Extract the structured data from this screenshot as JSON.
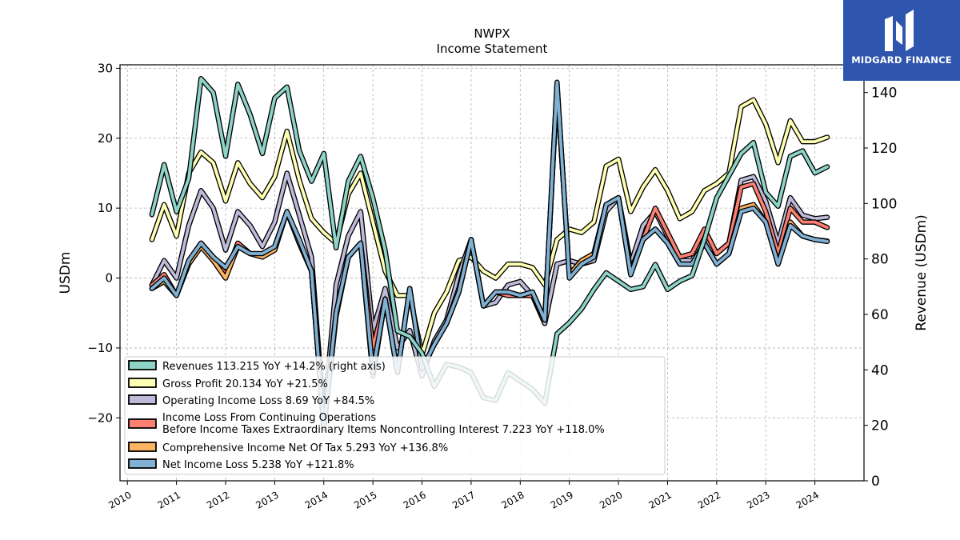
{
  "header": {
    "ticker": "NWPX",
    "subtitle": "Income Statement"
  },
  "brand": {
    "name": "MIDGARD FINANCE",
    "bg_color": "#2f56ae",
    "icon": "midgard-logo-icon"
  },
  "chart_data": {
    "type": "line",
    "title": "NWPX",
    "subtitle": "Income Statement",
    "ylabel_left": "USDm",
    "ylabel_right": "Revenue (USDm)",
    "ylim_left": [
      -29,
      30.5
    ],
    "ylim_right": [
      0,
      150
    ],
    "yticks_left": [
      -20,
      -10,
      0,
      10,
      20,
      30
    ],
    "yticks_right": [
      0,
      20,
      40,
      60,
      80,
      100,
      120,
      140
    ],
    "xlim": [
      2009.85,
      2025.0
    ],
    "xticks": [
      2010,
      2011,
      2012,
      2013,
      2014,
      2015,
      2016,
      2017,
      2018,
      2019,
      2020,
      2021,
      2022,
      2023,
      2024
    ],
    "grid": true,
    "legend_position": "lower-left",
    "legend": [
      {
        "key": "revenues",
        "label": "Revenues  113.215 YoY +14.2% (right axis)"
      },
      {
        "key": "gross",
        "label": "Gross Profit  20.134 YoY +21.5%"
      },
      {
        "key": "opinc",
        "label": "Operating Income Loss  8.69 YoY +84.5%"
      },
      {
        "key": "pretax",
        "label_line1": "Income Loss From Continuing Operations",
        "label_line2": "Before Income Taxes Extraordinary Items Noncontrolling Interest  7.223 YoY +118.0%"
      },
      {
        "key": "comp",
        "label": "Comprehensive Income Net Of Tax  5.293 YoY +136.8%"
      },
      {
        "key": "net",
        "label": "Net Income Loss  5.238 YoY +121.8%"
      }
    ],
    "series": [
      {
        "key": "gross",
        "color": "#ffffb3",
        "axis": "left",
        "x": [
          2010.5,
          2010.75,
          2011.0,
          2011.25,
          2011.5,
          2011.75,
          2012.0,
          2012.25,
          2012.5,
          2012.75,
          2013.0,
          2013.25,
          2013.5,
          2013.75,
          2014.0,
          2014.25,
          2014.5,
          2014.75,
          2015.0,
          2015.25,
          2015.5,
          2015.75,
          2016.0,
          2016.25,
          2016.5,
          2016.75,
          2017.0,
          2017.25,
          2017.5,
          2017.75,
          2018.0,
          2018.25,
          2018.5,
          2018.75,
          2019.0,
          2019.25,
          2019.5,
          2019.75,
          2020.0,
          2020.25,
          2020.5,
          2020.75,
          2021.0,
          2021.25,
          2021.5,
          2021.75,
          2022.0,
          2022.25,
          2022.5,
          2022.75,
          2023.0,
          2023.25,
          2023.5,
          2023.75,
          2024.0,
          2024.25
        ],
        "values": [
          5.5,
          10.5,
          6.0,
          15.0,
          18.0,
          16.5,
          11.0,
          16.5,
          13.5,
          11.5,
          14.5,
          21.0,
          14.0,
          8.5,
          6.5,
          5.0,
          12.0,
          15.0,
          8.0,
          1.0,
          -2.5,
          -2.5,
          -11.0,
          -5.0,
          -2.0,
          2.5,
          3.0,
          1.0,
          0.0,
          2.0,
          2.0,
          1.5,
          -1.0,
          5.5,
          7.0,
          6.5,
          8.0,
          16.0,
          17.0,
          9.5,
          13.0,
          15.5,
          12.5,
          8.5,
          9.5,
          12.5,
          13.5,
          15.0,
          24.5,
          25.5,
          22.0,
          16.5,
          22.5,
          19.5,
          19.5,
          20.134
        ]
      },
      {
        "key": "opinc",
        "color": "#bebada",
        "axis": "left",
        "x": [
          2010.5,
          2010.75,
          2011.0,
          2011.25,
          2011.5,
          2011.75,
          2012.0,
          2012.25,
          2012.5,
          2012.75,
          2013.0,
          2013.25,
          2013.5,
          2013.75,
          2014.0,
          2014.25,
          2014.5,
          2014.75,
          2015.0,
          2015.25,
          2015.5,
          2015.75,
          2016.0,
          2016.25,
          2016.5,
          2016.75,
          2017.0,
          2017.25,
          2017.5,
          2017.75,
          2018.0,
          2018.25,
          2018.5,
          2018.75,
          2019.0,
          2019.25,
          2019.5,
          2019.75,
          2020.0,
          2020.25,
          2020.5,
          2020.75,
          2021.0,
          2021.25,
          2021.5,
          2021.75,
          2022.0,
          2022.25,
          2022.5,
          2022.75,
          2023.0,
          2023.25,
          2023.5,
          2023.75,
          2024.0,
          2024.25
        ],
        "values": [
          -1.0,
          2.5,
          0.0,
          7.5,
          12.5,
          10.0,
          4.0,
          9.5,
          7.5,
          4.5,
          8.0,
          15.0,
          9.0,
          3.0,
          -20.0,
          -1.0,
          6.0,
          9.5,
          -7.5,
          -1.5,
          -10.0,
          -7.5,
          -14.0,
          -9.0,
          -6.0,
          0.5,
          5.5,
          -4.0,
          -3.5,
          -1.0,
          -0.5,
          -2.5,
          -6.5,
          2.0,
          2.5,
          2.0,
          2.5,
          9.5,
          11.5,
          2.0,
          7.5,
          9.5,
          6.0,
          2.5,
          2.5,
          5.5,
          3.5,
          5.0,
          14.0,
          14.5,
          11.0,
          5.0,
          11.5,
          9.0,
          8.5,
          8.69
        ]
      },
      {
        "key": "pretax",
        "color": "#fb8072",
        "axis": "left",
        "x": [
          2010.5,
          2010.75,
          2011.0,
          2011.25,
          2011.5,
          2011.75,
          2012.0,
          2012.25,
          2012.5,
          2012.75,
          2013.0,
          2013.25,
          2013.5,
          2013.75,
          2014.0,
          2014.25,
          2014.5,
          2014.75,
          2015.0,
          2015.25,
          2015.5,
          2015.75,
          2016.0,
          2016.25,
          2016.5,
          2016.75,
          2017.0,
          2017.25,
          2017.5,
          2017.75,
          2018.0,
          2018.25,
          2018.5,
          2018.75,
          2019.0,
          2019.25,
          2019.5,
          2019.75,
          2020.0,
          2020.25,
          2020.5,
          2020.75,
          2021.0,
          2021.25,
          2021.5,
          2021.75,
          2022.0,
          2022.25,
          2022.5,
          2022.75,
          2023.0,
          2023.25,
          2023.5,
          2023.75,
          2024.0,
          2024.25
        ],
        "values": [
          -1.0,
          0.5,
          -2.5,
          2.5,
          5.0,
          3.0,
          0.5,
          5.0,
          3.5,
          3.0,
          4.5,
          9.5,
          5.0,
          1.0,
          -21.0,
          -5.0,
          3.0,
          5.0,
          -10.0,
          -3.0,
          -13.5,
          -1.5,
          -13.0,
          -9.5,
          -6.5,
          -2.0,
          5.5,
          -4.0,
          -2.0,
          -2.5,
          -2.5,
          -2.5,
          -6.0,
          27.5,
          0.5,
          2.5,
          3.5,
          10.5,
          11.5,
          1.0,
          5.5,
          10.0,
          6.5,
          3.0,
          3.5,
          7.0,
          3.5,
          5.0,
          13.0,
          13.5,
          9.5,
          3.5,
          10.0,
          8.0,
          8.0,
          7.223
        ]
      },
      {
        "key": "comp",
        "color": "#fdb462",
        "axis": "left",
        "x": [
          2010.5,
          2010.75,
          2011.0,
          2011.25,
          2011.5,
          2011.75,
          2012.0,
          2012.25,
          2012.5,
          2012.75,
          2013.0,
          2013.25,
          2013.5,
          2013.75,
          2014.0,
          2014.25,
          2014.5,
          2014.75,
          2015.0,
          2015.25,
          2015.5,
          2015.75,
          2016.0,
          2016.25,
          2016.5,
          2016.75,
          2017.0,
          2017.25,
          2017.5,
          2017.75,
          2018.0,
          2018.25,
          2018.5,
          2018.75,
          2019.0,
          2019.25,
          2019.5,
          2019.75,
          2020.0,
          2020.25,
          2020.5,
          2020.75,
          2021.0,
          2021.25,
          2021.5,
          2021.75,
          2022.0,
          2022.25,
          2022.5,
          2022.75,
          2023.0,
          2023.25,
          2023.5,
          2023.75,
          2024.0,
          2024.25
        ],
        "values": [
          -1.5,
          -0.5,
          -2.5,
          2.0,
          4.5,
          2.5,
          0.0,
          4.5,
          3.5,
          3.0,
          4.0,
          9.5,
          5.0,
          1.0,
          -21.5,
          -5.5,
          3.0,
          5.0,
          -14.0,
          -3.0,
          -13.5,
          -1.5,
          -13.0,
          -9.5,
          -6.5,
          -1.5,
          5.5,
          -4.0,
          -2.0,
          -2.0,
          -2.5,
          -2.0,
          -6.0,
          27.5,
          0.5,
          2.5,
          3.5,
          10.5,
          11.5,
          0.5,
          5.5,
          7.0,
          5.0,
          2.0,
          2.0,
          5.0,
          2.0,
          3.5,
          10.0,
          10.5,
          8.0,
          2.0,
          8.0,
          6.0,
          5.5,
          5.293
        ]
      },
      {
        "key": "net",
        "color": "#80b1d3",
        "axis": "left",
        "x": [
          2010.5,
          2010.75,
          2011.0,
          2011.25,
          2011.5,
          2011.75,
          2012.0,
          2012.25,
          2012.5,
          2012.75,
          2013.0,
          2013.25,
          2013.5,
          2013.75,
          2014.0,
          2014.25,
          2014.5,
          2014.75,
          2015.0,
          2015.25,
          2015.5,
          2015.75,
          2016.0,
          2016.25,
          2016.5,
          2016.75,
          2017.0,
          2017.25,
          2017.5,
          2017.75,
          2018.0,
          2018.25,
          2018.5,
          2018.75,
          2019.0,
          2019.25,
          2019.5,
          2019.75,
          2020.0,
          2020.25,
          2020.5,
          2020.75,
          2021.0,
          2021.25,
          2021.5,
          2021.75,
          2022.0,
          2022.25,
          2022.5,
          2022.75,
          2023.0,
          2023.25,
          2023.5,
          2023.75,
          2024.0,
          2024.25
        ],
        "values": [
          -1.5,
          0.0,
          -2.5,
          2.5,
          5.0,
          3.0,
          1.5,
          4.5,
          3.5,
          3.5,
          4.5,
          9.5,
          5.5,
          1.0,
          -21.5,
          -5.0,
          3.0,
          5.0,
          -13.5,
          -3.0,
          -13.5,
          -1.5,
          -13.0,
          -9.5,
          -6.5,
          -2.0,
          5.5,
          -4.0,
          -2.0,
          -2.0,
          -2.5,
          -2.0,
          -6.0,
          28.0,
          0.0,
          2.0,
          3.0,
          10.5,
          11.5,
          0.5,
          5.5,
          7.0,
          5.0,
          2.0,
          2.0,
          5.0,
          2.0,
          3.5,
          9.5,
          10.0,
          8.0,
          2.0,
          7.5,
          6.0,
          5.5,
          5.238
        ]
      },
      {
        "key": "revenues",
        "color": "#8dd3c7",
        "axis": "right",
        "x": [
          2010.5,
          2010.75,
          2011.0,
          2011.25,
          2011.5,
          2011.75,
          2012.0,
          2012.25,
          2012.5,
          2012.75,
          2013.0,
          2013.25,
          2013.5,
          2013.75,
          2014.0,
          2014.25,
          2014.5,
          2014.75,
          2015.0,
          2015.25,
          2015.5,
          2015.75,
          2016.0,
          2016.25,
          2016.5,
          2016.75,
          2017.0,
          2017.25,
          2017.5,
          2017.75,
          2018.0,
          2018.25,
          2018.5,
          2018.75,
          2019.0,
          2019.25,
          2019.5,
          2019.75,
          2020.0,
          2020.25,
          2020.5,
          2020.75,
          2021.0,
          2021.25,
          2021.5,
          2021.75,
          2022.0,
          2022.25,
          2022.5,
          2022.75,
          2023.0,
          2023.25,
          2023.5,
          2023.75,
          2024.0,
          2024.25
        ],
        "values": [
          96,
          114,
          97,
          109,
          145,
          140,
          117,
          143,
          132,
          118,
          138,
          142,
          119,
          108,
          118,
          84,
          108,
          117,
          102,
          83,
          54,
          52,
          46,
          34,
          42,
          41,
          39,
          30,
          29,
          39,
          36,
          33,
          28,
          53,
          57,
          62,
          69,
          75,
          72,
          69,
          70,
          78,
          69,
          72,
          74,
          87,
          102,
          110,
          118,
          122,
          104,
          99,
          117,
          119,
          111,
          113.215
        ]
      }
    ]
  }
}
